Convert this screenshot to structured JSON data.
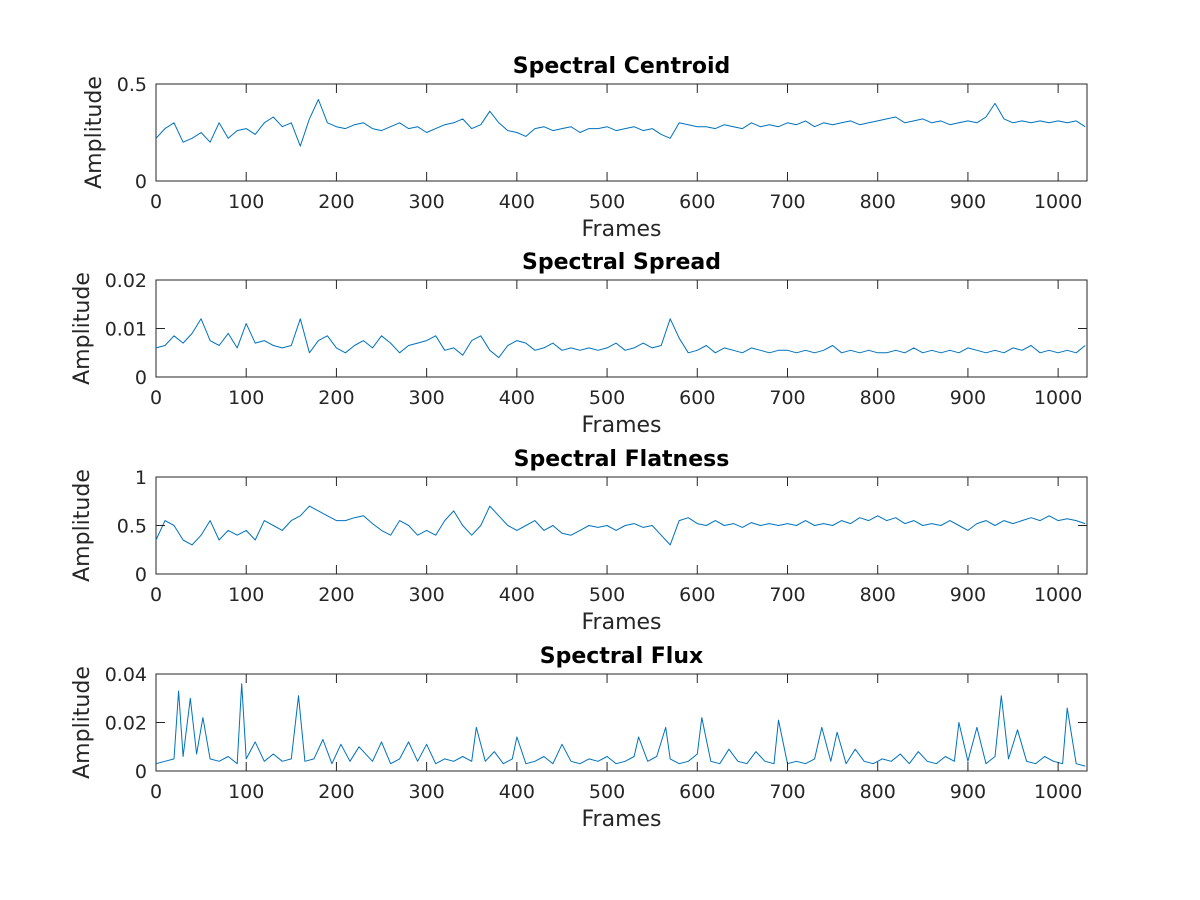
{
  "figure": {
    "background": "#ffffff",
    "axis_color": "#262626",
    "line_color": "#0072bd"
  },
  "chart_data": [
    {
      "type": "line",
      "title": "Spectral Centroid",
      "xlabel": "Frames",
      "ylabel": "Amplitude",
      "xlim": [
        0,
        1032
      ],
      "ylim": [
        0,
        0.5
      ],
      "xticks": [
        0,
        100,
        200,
        300,
        400,
        500,
        600,
        700,
        800,
        900,
        1000
      ],
      "xtick_labels": [
        "0",
        "100",
        "200",
        "300",
        "400",
        "500",
        "600",
        "700",
        "800",
        "900",
        "1000"
      ],
      "yticks": [
        0,
        0.5
      ],
      "ytick_labels": [
        "0",
        "0.5"
      ],
      "grid": false,
      "series": [
        {
          "x": [
            0,
            10,
            20,
            30,
            40,
            50,
            60,
            70,
            80,
            90,
            100,
            110,
            120,
            130,
            140,
            150,
            160,
            170,
            180,
            190,
            200,
            210,
            220,
            230,
            240,
            250,
            260,
            270,
            280,
            290,
            300,
            310,
            320,
            330,
            340,
            350,
            360,
            370,
            380,
            390,
            400,
            410,
            420,
            430,
            440,
            450,
            460,
            470,
            480,
            490,
            500,
            510,
            520,
            530,
            540,
            550,
            560,
            570,
            580,
            590,
            600,
            610,
            620,
            630,
            640,
            650,
            660,
            670,
            680,
            690,
            700,
            710,
            720,
            730,
            740,
            750,
            760,
            770,
            780,
            790,
            800,
            810,
            820,
            830,
            840,
            850,
            860,
            870,
            880,
            890,
            900,
            910,
            920,
            930,
            940,
            950,
            960,
            970,
            980,
            990,
            1000,
            1010,
            1020,
            1030
          ],
          "values": [
            0.22,
            0.27,
            0.3,
            0.2,
            0.22,
            0.25,
            0.2,
            0.3,
            0.22,
            0.26,
            0.27,
            0.24,
            0.3,
            0.33,
            0.28,
            0.3,
            0.18,
            0.32,
            0.42,
            0.3,
            0.28,
            0.27,
            0.29,
            0.3,
            0.27,
            0.26,
            0.28,
            0.3,
            0.27,
            0.28,
            0.25,
            0.27,
            0.29,
            0.3,
            0.32,
            0.27,
            0.29,
            0.36,
            0.3,
            0.26,
            0.25,
            0.23,
            0.27,
            0.28,
            0.26,
            0.27,
            0.28,
            0.25,
            0.27,
            0.27,
            0.28,
            0.26,
            0.27,
            0.28,
            0.26,
            0.27,
            0.24,
            0.22,
            0.3,
            0.29,
            0.28,
            0.28,
            0.27,
            0.29,
            0.28,
            0.27,
            0.3,
            0.28,
            0.29,
            0.28,
            0.3,
            0.29,
            0.31,
            0.28,
            0.3,
            0.29,
            0.3,
            0.31,
            0.29,
            0.3,
            0.31,
            0.32,
            0.33,
            0.3,
            0.31,
            0.32,
            0.3,
            0.31,
            0.29,
            0.3,
            0.31,
            0.3,
            0.33,
            0.4,
            0.32,
            0.3,
            0.31,
            0.3,
            0.31,
            0.3,
            0.31,
            0.3,
            0.31,
            0.28
          ]
        }
      ]
    },
    {
      "type": "line",
      "title": "Spectral Spread",
      "xlabel": "Frames",
      "ylabel": "Amplitude",
      "xlim": [
        0,
        1032
      ],
      "ylim": [
        0,
        0.02
      ],
      "xticks": [
        0,
        100,
        200,
        300,
        400,
        500,
        600,
        700,
        800,
        900,
        1000
      ],
      "xtick_labels": [
        "0",
        "100",
        "200",
        "300",
        "400",
        "500",
        "600",
        "700",
        "800",
        "900",
        "1000"
      ],
      "yticks": [
        0,
        0.01,
        0.02
      ],
      "ytick_labels": [
        "0",
        "0.01",
        "0.02"
      ],
      "grid": false,
      "series": [
        {
          "x": [
            0,
            10,
            20,
            30,
            40,
            50,
            60,
            70,
            80,
            90,
            100,
            110,
            120,
            130,
            140,
            150,
            160,
            170,
            180,
            190,
            200,
            210,
            220,
            230,
            240,
            250,
            260,
            270,
            280,
            290,
            300,
            310,
            320,
            330,
            340,
            350,
            360,
            370,
            380,
            390,
            400,
            410,
            420,
            430,
            440,
            450,
            460,
            470,
            480,
            490,
            500,
            510,
            520,
            530,
            540,
            550,
            560,
            570,
            580,
            590,
            600,
            610,
            620,
            630,
            640,
            650,
            660,
            670,
            680,
            690,
            700,
            710,
            720,
            730,
            740,
            750,
            760,
            770,
            780,
            790,
            800,
            810,
            820,
            830,
            840,
            850,
            860,
            870,
            880,
            890,
            900,
            910,
            920,
            930,
            940,
            950,
            960,
            970,
            980,
            990,
            1000,
            1010,
            1020,
            1030
          ],
          "values": [
            0.006,
            0.0065,
            0.0085,
            0.007,
            0.009,
            0.012,
            0.0075,
            0.0065,
            0.009,
            0.006,
            0.011,
            0.007,
            0.0075,
            0.0065,
            0.006,
            0.0065,
            0.012,
            0.005,
            0.0075,
            0.0085,
            0.006,
            0.005,
            0.0065,
            0.0075,
            0.006,
            0.0085,
            0.007,
            0.005,
            0.0065,
            0.007,
            0.0075,
            0.0085,
            0.0055,
            0.006,
            0.0045,
            0.0075,
            0.0085,
            0.0055,
            0.004,
            0.0065,
            0.0075,
            0.007,
            0.0055,
            0.006,
            0.007,
            0.0055,
            0.006,
            0.0055,
            0.006,
            0.0055,
            0.006,
            0.007,
            0.0055,
            0.006,
            0.007,
            0.006,
            0.0065,
            0.012,
            0.008,
            0.005,
            0.0055,
            0.0065,
            0.005,
            0.006,
            0.0055,
            0.005,
            0.006,
            0.0055,
            0.005,
            0.0055,
            0.0055,
            0.005,
            0.0055,
            0.005,
            0.0055,
            0.0065,
            0.005,
            0.0055,
            0.005,
            0.0055,
            0.005,
            0.005,
            0.0055,
            0.005,
            0.006,
            0.005,
            0.0055,
            0.005,
            0.0055,
            0.005,
            0.006,
            0.0055,
            0.005,
            0.0055,
            0.005,
            0.006,
            0.0055,
            0.0065,
            0.005,
            0.0055,
            0.005,
            0.0055,
            0.005,
            0.0065
          ]
        }
      ]
    },
    {
      "type": "line",
      "title": "Spectral Flatness",
      "xlabel": "Frames",
      "ylabel": "Amplitude",
      "xlim": [
        0,
        1032
      ],
      "ylim": [
        0,
        1
      ],
      "xticks": [
        0,
        100,
        200,
        300,
        400,
        500,
        600,
        700,
        800,
        900,
        1000
      ],
      "xtick_labels": [
        "0",
        "100",
        "200",
        "300",
        "400",
        "500",
        "600",
        "700",
        "800",
        "900",
        "1000"
      ],
      "yticks": [
        0,
        0.5,
        1
      ],
      "ytick_labels": [
        "0",
        "0.5",
        "1"
      ],
      "grid": false,
      "series": [
        {
          "x": [
            0,
            10,
            20,
            30,
            40,
            50,
            60,
            70,
            80,
            90,
            100,
            110,
            120,
            130,
            140,
            150,
            160,
            170,
            180,
            190,
            200,
            210,
            220,
            230,
            240,
            250,
            260,
            270,
            280,
            290,
            300,
            310,
            320,
            330,
            340,
            350,
            360,
            370,
            380,
            390,
            400,
            410,
            420,
            430,
            440,
            450,
            460,
            470,
            480,
            490,
            500,
            510,
            520,
            530,
            540,
            550,
            560,
            570,
            580,
            590,
            600,
            610,
            620,
            630,
            640,
            650,
            660,
            670,
            680,
            690,
            700,
            710,
            720,
            730,
            740,
            750,
            760,
            770,
            780,
            790,
            800,
            810,
            820,
            830,
            840,
            850,
            860,
            870,
            880,
            890,
            900,
            910,
            920,
            930,
            940,
            950,
            960,
            970,
            980,
            990,
            1000,
            1010,
            1020,
            1030
          ],
          "values": [
            0.35,
            0.55,
            0.5,
            0.35,
            0.3,
            0.4,
            0.55,
            0.35,
            0.45,
            0.4,
            0.45,
            0.35,
            0.55,
            0.5,
            0.45,
            0.55,
            0.6,
            0.7,
            0.65,
            0.6,
            0.55,
            0.55,
            0.58,
            0.6,
            0.52,
            0.45,
            0.4,
            0.55,
            0.5,
            0.4,
            0.45,
            0.4,
            0.55,
            0.65,
            0.5,
            0.4,
            0.5,
            0.7,
            0.6,
            0.5,
            0.45,
            0.5,
            0.55,
            0.45,
            0.5,
            0.42,
            0.4,
            0.45,
            0.5,
            0.48,
            0.5,
            0.45,
            0.5,
            0.52,
            0.48,
            0.5,
            0.4,
            0.3,
            0.55,
            0.58,
            0.52,
            0.5,
            0.55,
            0.5,
            0.52,
            0.48,
            0.53,
            0.5,
            0.52,
            0.5,
            0.52,
            0.5,
            0.55,
            0.5,
            0.52,
            0.5,
            0.55,
            0.52,
            0.58,
            0.55,
            0.6,
            0.55,
            0.58,
            0.52,
            0.55,
            0.5,
            0.52,
            0.5,
            0.55,
            0.5,
            0.45,
            0.52,
            0.55,
            0.5,
            0.55,
            0.52,
            0.55,
            0.58,
            0.55,
            0.6,
            0.55,
            0.57,
            0.55,
            0.52
          ]
        }
      ]
    },
    {
      "type": "line",
      "title": "Spectral Flux",
      "xlabel": "Frames",
      "ylabel": "Amplitude",
      "xlim": [
        0,
        1032
      ],
      "ylim": [
        0,
        0.04
      ],
      "xticks": [
        0,
        100,
        200,
        300,
        400,
        500,
        600,
        700,
        800,
        900,
        1000
      ],
      "xtick_labels": [
        "0",
        "100",
        "200",
        "300",
        "400",
        "500",
        "600",
        "700",
        "800",
        "900",
        "1000"
      ],
      "yticks": [
        0,
        0.02,
        0.04
      ],
      "ytick_labels": [
        "0",
        "0.02",
        "0.04"
      ],
      "grid": false,
      "series": [
        {
          "x": [
            0,
            10,
            20,
            25,
            30,
            38,
            45,
            52,
            60,
            70,
            80,
            90,
            95,
            100,
            110,
            120,
            130,
            140,
            150,
            158,
            165,
            175,
            185,
            195,
            205,
            215,
            225,
            240,
            250,
            260,
            270,
            280,
            290,
            300,
            310,
            320,
            330,
            340,
            350,
            355,
            365,
            375,
            385,
            395,
            400,
            410,
            420,
            430,
            440,
            450,
            460,
            470,
            480,
            490,
            500,
            510,
            520,
            530,
            535,
            545,
            555,
            565,
            570,
            580,
            590,
            600,
            605,
            615,
            625,
            635,
            645,
            655,
            665,
            675,
            685,
            690,
            700,
            710,
            720,
            730,
            738,
            748,
            755,
            765,
            775,
            785,
            795,
            805,
            815,
            825,
            835,
            845,
            855,
            865,
            875,
            885,
            890,
            900,
            910,
            920,
            930,
            937,
            945,
            955,
            965,
            975,
            985,
            995,
            1005,
            1010,
            1020,
            1030
          ],
          "values": [
            0.003,
            0.004,
            0.005,
            0.033,
            0.006,
            0.03,
            0.007,
            0.022,
            0.005,
            0.004,
            0.006,
            0.003,
            0.036,
            0.005,
            0.012,
            0.004,
            0.007,
            0.004,
            0.005,
            0.031,
            0.004,
            0.005,
            0.013,
            0.003,
            0.011,
            0.004,
            0.01,
            0.004,
            0.012,
            0.003,
            0.005,
            0.012,
            0.004,
            0.011,
            0.003,
            0.005,
            0.004,
            0.006,
            0.004,
            0.018,
            0.004,
            0.008,
            0.003,
            0.005,
            0.014,
            0.003,
            0.004,
            0.006,
            0.003,
            0.011,
            0.004,
            0.003,
            0.005,
            0.004,
            0.006,
            0.003,
            0.004,
            0.006,
            0.014,
            0.004,
            0.006,
            0.018,
            0.005,
            0.003,
            0.004,
            0.007,
            0.022,
            0.004,
            0.003,
            0.009,
            0.004,
            0.003,
            0.008,
            0.004,
            0.003,
            0.021,
            0.003,
            0.004,
            0.003,
            0.005,
            0.018,
            0.004,
            0.016,
            0.003,
            0.009,
            0.004,
            0.003,
            0.005,
            0.004,
            0.007,
            0.003,
            0.008,
            0.004,
            0.003,
            0.006,
            0.004,
            0.02,
            0.004,
            0.018,
            0.003,
            0.006,
            0.031,
            0.005,
            0.017,
            0.004,
            0.003,
            0.006,
            0.004,
            0.003,
            0.026,
            0.003,
            0.002
          ]
        }
      ]
    }
  ]
}
